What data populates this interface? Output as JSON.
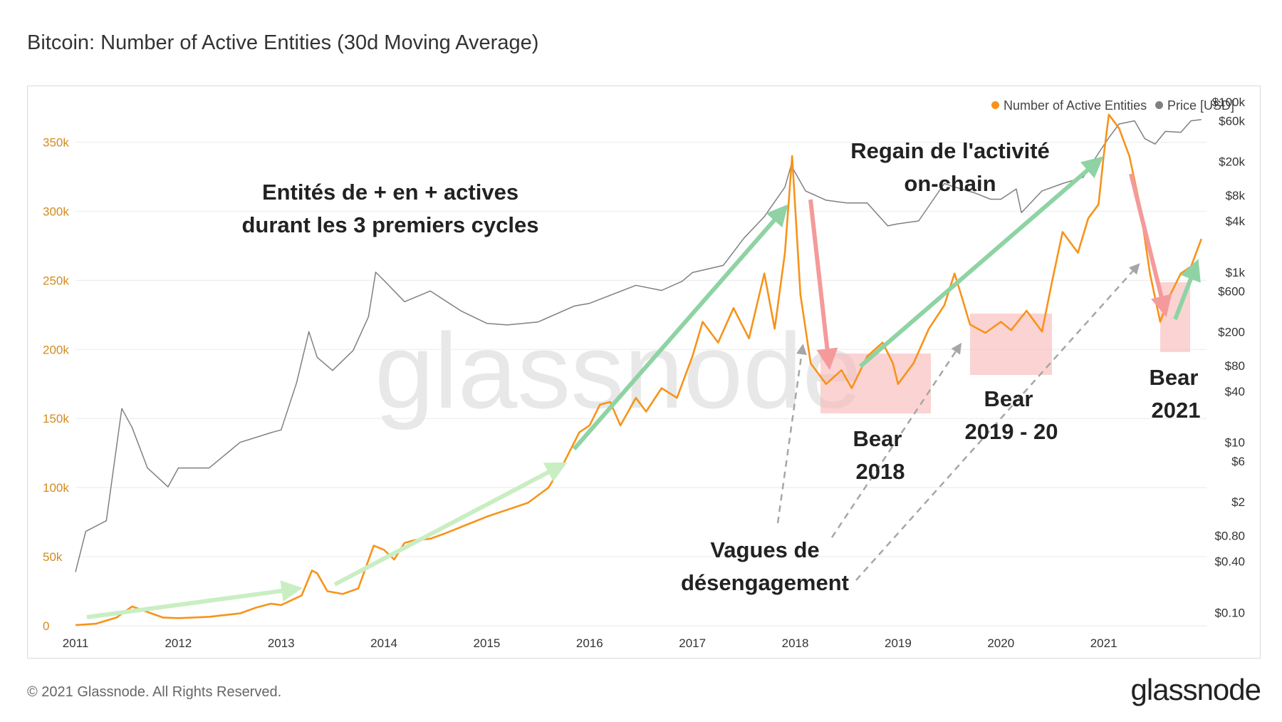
{
  "title": "Bitcoin: Number of Active Entities (30d Moving Average)",
  "copyright": "© 2021 Glassnode. All Rights Reserved.",
  "logo": "glassnode",
  "watermark": "glassnode",
  "legend": {
    "entities": "Number of Active Entities",
    "price": "Price [USD]"
  },
  "colors": {
    "entities": "#f7931a",
    "price": "#808080",
    "green_arrow": "#8fd3a4",
    "light_green_arrow": "#c9eec2",
    "red_arrow": "#f49a9a",
    "bear_box": "#f8b5b5",
    "gray_arrow": "#a6a6a6"
  },
  "annotations": {
    "cycles": [
      "Entités de + en + actives",
      "durant les 3 premiers cycles"
    ],
    "regain": [
      "Regain de l'activité",
      "on-chain"
    ],
    "bear2018": [
      "Bear",
      "2018"
    ],
    "bear2019": [
      "Bear",
      "2019 - 20"
    ],
    "bear2021": [
      "Bear",
      "2021"
    ],
    "vagues": [
      "Vagues de",
      "désengagement"
    ]
  },
  "chart_data": {
    "type": "line",
    "title": "Bitcoin: Number of Active Entities (30d Moving Average)",
    "x_ticks": [
      "2011",
      "2012",
      "2013",
      "2014",
      "2015",
      "2016",
      "2017",
      "2018",
      "2019",
      "2020",
      "2021"
    ],
    "y_left": {
      "label": "Number of Active Entities",
      "ticks": [
        "0",
        "50k",
        "100k",
        "150k",
        "200k",
        "250k",
        "300k",
        "350k"
      ],
      "range": [
        0,
        390000
      ]
    },
    "y_right": {
      "label": "Price [USD]",
      "scale": "log",
      "ticks": [
        "$0.10",
        "$0.40",
        "$0.80",
        "$2",
        "$6",
        "$10",
        "$40",
        "$80",
        "$200",
        "$600",
        "$1k",
        "$4k",
        "$8k",
        "$20k",
        "$60k",
        "$100k"
      ],
      "range": [
        0.07,
        150000
      ]
    },
    "series": [
      {
        "name": "Number of Active Entities",
        "axis": "left",
        "points": [
          [
            2011.0,
            500
          ],
          [
            2011.2,
            1500
          ],
          [
            2011.4,
            6000
          ],
          [
            2011.55,
            14000
          ],
          [
            2011.7,
            10000
          ],
          [
            2011.85,
            6000
          ],
          [
            2012.0,
            5500
          ],
          [
            2012.3,
            6500
          ],
          [
            2012.6,
            9000
          ],
          [
            2012.75,
            13000
          ],
          [
            2012.9,
            16000
          ],
          [
            2013.0,
            15000
          ],
          [
            2013.2,
            22000
          ],
          [
            2013.3,
            40000
          ],
          [
            2013.35,
            38000
          ],
          [
            2013.45,
            25000
          ],
          [
            2013.6,
            23000
          ],
          [
            2013.75,
            27000
          ],
          [
            2013.9,
            58000
          ],
          [
            2014.0,
            55000
          ],
          [
            2014.1,
            48000
          ],
          [
            2014.2,
            60000
          ],
          [
            2014.3,
            62000
          ],
          [
            2014.45,
            63000
          ],
          [
            2014.6,
            67000
          ],
          [
            2014.8,
            73000
          ],
          [
            2015.0,
            79000
          ],
          [
            2015.2,
            84000
          ],
          [
            2015.4,
            89000
          ],
          [
            2015.6,
            100000
          ],
          [
            2015.75,
            118000
          ],
          [
            2015.9,
            140000
          ],
          [
            2016.0,
            145000
          ],
          [
            2016.1,
            160000
          ],
          [
            2016.2,
            162000
          ],
          [
            2016.3,
            145000
          ],
          [
            2016.45,
            165000
          ],
          [
            2016.55,
            155000
          ],
          [
            2016.7,
            172000
          ],
          [
            2016.85,
            165000
          ],
          [
            2017.0,
            195000
          ],
          [
            2017.1,
            220000
          ],
          [
            2017.25,
            205000
          ],
          [
            2017.4,
            230000
          ],
          [
            2017.55,
            208000
          ],
          [
            2017.7,
            255000
          ],
          [
            2017.8,
            215000
          ],
          [
            2017.9,
            270000
          ],
          [
            2017.97,
            340000
          ],
          [
            2018.05,
            240000
          ],
          [
            2018.15,
            190000
          ],
          [
            2018.3,
            175000
          ],
          [
            2018.45,
            185000
          ],
          [
            2018.55,
            172000
          ],
          [
            2018.7,
            195000
          ],
          [
            2018.85,
            205000
          ],
          [
            2018.95,
            190000
          ],
          [
            2019.0,
            175000
          ],
          [
            2019.15,
            190000
          ],
          [
            2019.3,
            215000
          ],
          [
            2019.45,
            232000
          ],
          [
            2019.55,
            255000
          ],
          [
            2019.62,
            238000
          ],
          [
            2019.7,
            218000
          ],
          [
            2019.85,
            212000
          ],
          [
            2020.0,
            220000
          ],
          [
            2020.1,
            214000
          ],
          [
            2020.25,
            228000
          ],
          [
            2020.4,
            213000
          ],
          [
            2020.5,
            250000
          ],
          [
            2020.6,
            285000
          ],
          [
            2020.75,
            270000
          ],
          [
            2020.85,
            295000
          ],
          [
            2020.95,
            305000
          ],
          [
            2021.0,
            340000
          ],
          [
            2021.05,
            370000
          ],
          [
            2021.15,
            360000
          ],
          [
            2021.25,
            340000
          ],
          [
            2021.35,
            305000
          ],
          [
            2021.45,
            255000
          ],
          [
            2021.55,
            220000
          ],
          [
            2021.65,
            240000
          ],
          [
            2021.75,
            255000
          ],
          [
            2021.85,
            260000
          ],
          [
            2021.95,
            280000
          ]
        ]
      },
      {
        "name": "Price [USD]",
        "axis": "right",
        "points": [
          [
            2011.0,
            0.3
          ],
          [
            2011.1,
            0.9
          ],
          [
            2011.3,
            1.2
          ],
          [
            2011.45,
            25
          ],
          [
            2011.55,
            15
          ],
          [
            2011.7,
            5
          ],
          [
            2011.9,
            3
          ],
          [
            2012.0,
            5
          ],
          [
            2012.3,
            5
          ],
          [
            2012.6,
            10
          ],
          [
            2012.9,
            13
          ],
          [
            2013.0,
            14
          ],
          [
            2013.15,
            50
          ],
          [
            2013.27,
            200
          ],
          [
            2013.35,
            100
          ],
          [
            2013.5,
            70
          ],
          [
            2013.7,
            120
          ],
          [
            2013.85,
            300
          ],
          [
            2013.92,
            1000
          ],
          [
            2014.0,
            800
          ],
          [
            2014.2,
            450
          ],
          [
            2014.45,
            600
          ],
          [
            2014.75,
            350
          ],
          [
            2015.0,
            250
          ],
          [
            2015.2,
            240
          ],
          [
            2015.5,
            260
          ],
          [
            2015.85,
            400
          ],
          [
            2016.0,
            430
          ],
          [
            2016.45,
            700
          ],
          [
            2016.7,
            610
          ],
          [
            2016.9,
            780
          ],
          [
            2017.0,
            990
          ],
          [
            2017.3,
            1200
          ],
          [
            2017.5,
            2500
          ],
          [
            2017.7,
            4500
          ],
          [
            2017.9,
            10000
          ],
          [
            2017.96,
            18000
          ],
          [
            2018.1,
            9000
          ],
          [
            2018.3,
            7000
          ],
          [
            2018.5,
            6500
          ],
          [
            2018.7,
            6500
          ],
          [
            2018.9,
            3500
          ],
          [
            2019.0,
            3700
          ],
          [
            2019.2,
            4000
          ],
          [
            2019.45,
            11000
          ],
          [
            2019.55,
            10000
          ],
          [
            2019.75,
            8500
          ],
          [
            2019.9,
            7200
          ],
          [
            2020.0,
            7200
          ],
          [
            2020.15,
            9500
          ],
          [
            2020.2,
            5000
          ],
          [
            2020.4,
            9000
          ],
          [
            2020.6,
            11000
          ],
          [
            2020.8,
            13000
          ],
          [
            2020.95,
            25000
          ],
          [
            2021.05,
            38000
          ],
          [
            2021.15,
            55000
          ],
          [
            2021.3,
            60000
          ],
          [
            2021.4,
            37000
          ],
          [
            2021.5,
            32000
          ],
          [
            2021.6,
            45000
          ],
          [
            2021.75,
            44000
          ],
          [
            2021.85,
            60000
          ],
          [
            2021.95,
            62000
          ]
        ]
      }
    ]
  }
}
